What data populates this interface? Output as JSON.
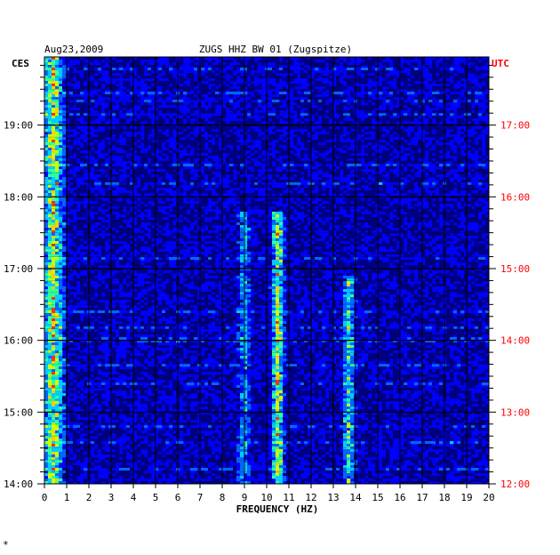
{
  "chart_data": {
    "type": "heatmap",
    "title": "ZUGS HHZ BW 01 (Zugspitze)",
    "date": "Aug23,2009",
    "xlabel": "FREQUENCY (HZ)",
    "xlim": [
      0,
      20
    ],
    "x_ticks": [
      "0",
      "1",
      "2",
      "3",
      "4",
      "5",
      "6",
      "7",
      "8",
      "9",
      "10",
      "11",
      "12",
      "13",
      "14",
      "15",
      "16",
      "17",
      "18",
      "19",
      "20"
    ],
    "left_axis": {
      "label": "CES",
      "ticks": [
        "19:00",
        "18:00",
        "17:00",
        "16:00",
        "15:00",
        "14:00"
      ],
      "hours": [
        19,
        18,
        17,
        16,
        15,
        14
      ]
    },
    "right_axis": {
      "label": "UTC",
      "ticks": [
        "17:00",
        "16:00",
        "15:00",
        "14:00",
        "13:00",
        "12:00"
      ],
      "hours": [
        17,
        16,
        15,
        14,
        13,
        12
      ]
    },
    "time_range_ces": [
      14.0,
      19.95
    ],
    "grid": true,
    "colormap": [
      "#00007f",
      "#0000ff",
      "#0066ff",
      "#00ccff",
      "#33ff99",
      "#ccff00",
      "#ffcc00",
      "#ff3300"
    ],
    "energy_bands": [
      {
        "freq_hz": 10.5,
        "ces_from": 14.0,
        "ces_to": 17.8,
        "level": "high"
      },
      {
        "freq_hz": 13.7,
        "ces_from": 14.0,
        "ces_to": 16.9,
        "level": "medium"
      },
      {
        "freq_hz": 0.4,
        "ces_from": 14.0,
        "ces_to": 19.95,
        "level": "high"
      },
      {
        "freq_hz": 9.0,
        "ces_from": 14.0,
        "ces_to": 17.8,
        "level": "low"
      }
    ],
    "watermark": "*"
  }
}
